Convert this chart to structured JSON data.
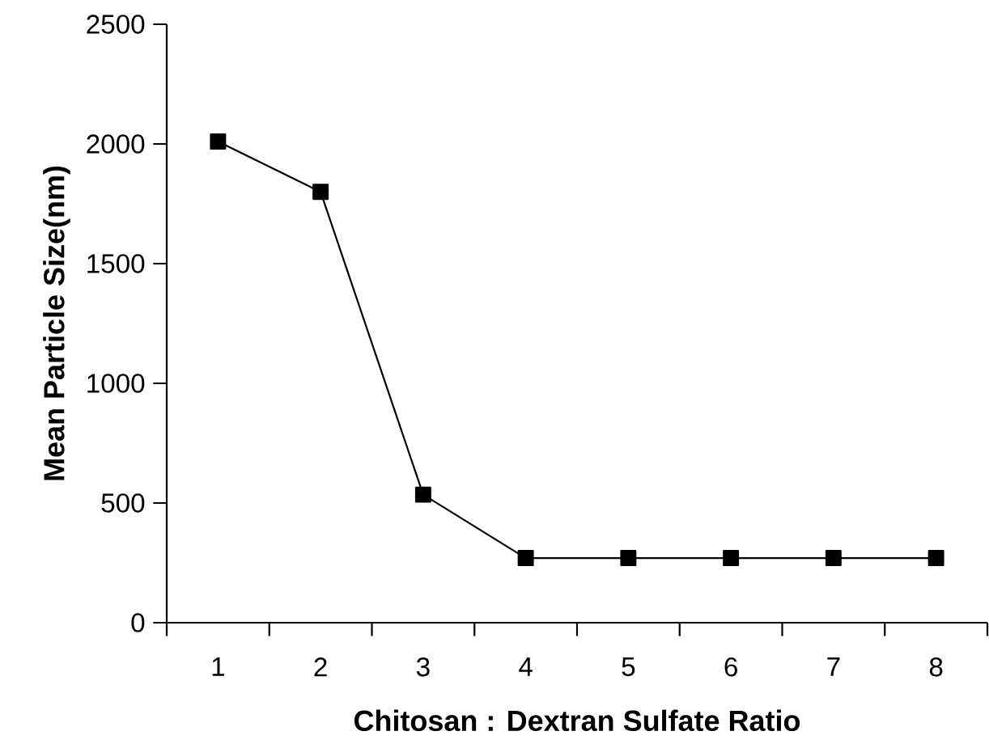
{
  "chart_data": {
    "type": "line",
    "xlabel": "Chitosan : Dextran Sulfate Ratio",
    "ylabel": "Mean Particle Size(nm)",
    "categories": [
      "1",
      "2",
      "3",
      "4",
      "5",
      "6",
      "7",
      "8"
    ],
    "series": [
      {
        "color": "#000000",
        "values": [
          2010,
          1800,
          535,
          270,
          270,
          270,
          270,
          270
        ]
      }
    ],
    "ylim": [
      0,
      2500
    ],
    "yticks": [
      0,
      500,
      1000,
      1500,
      2000,
      2500
    ],
    "marker": "square",
    "line_style": "solid",
    "grid": false
  }
}
